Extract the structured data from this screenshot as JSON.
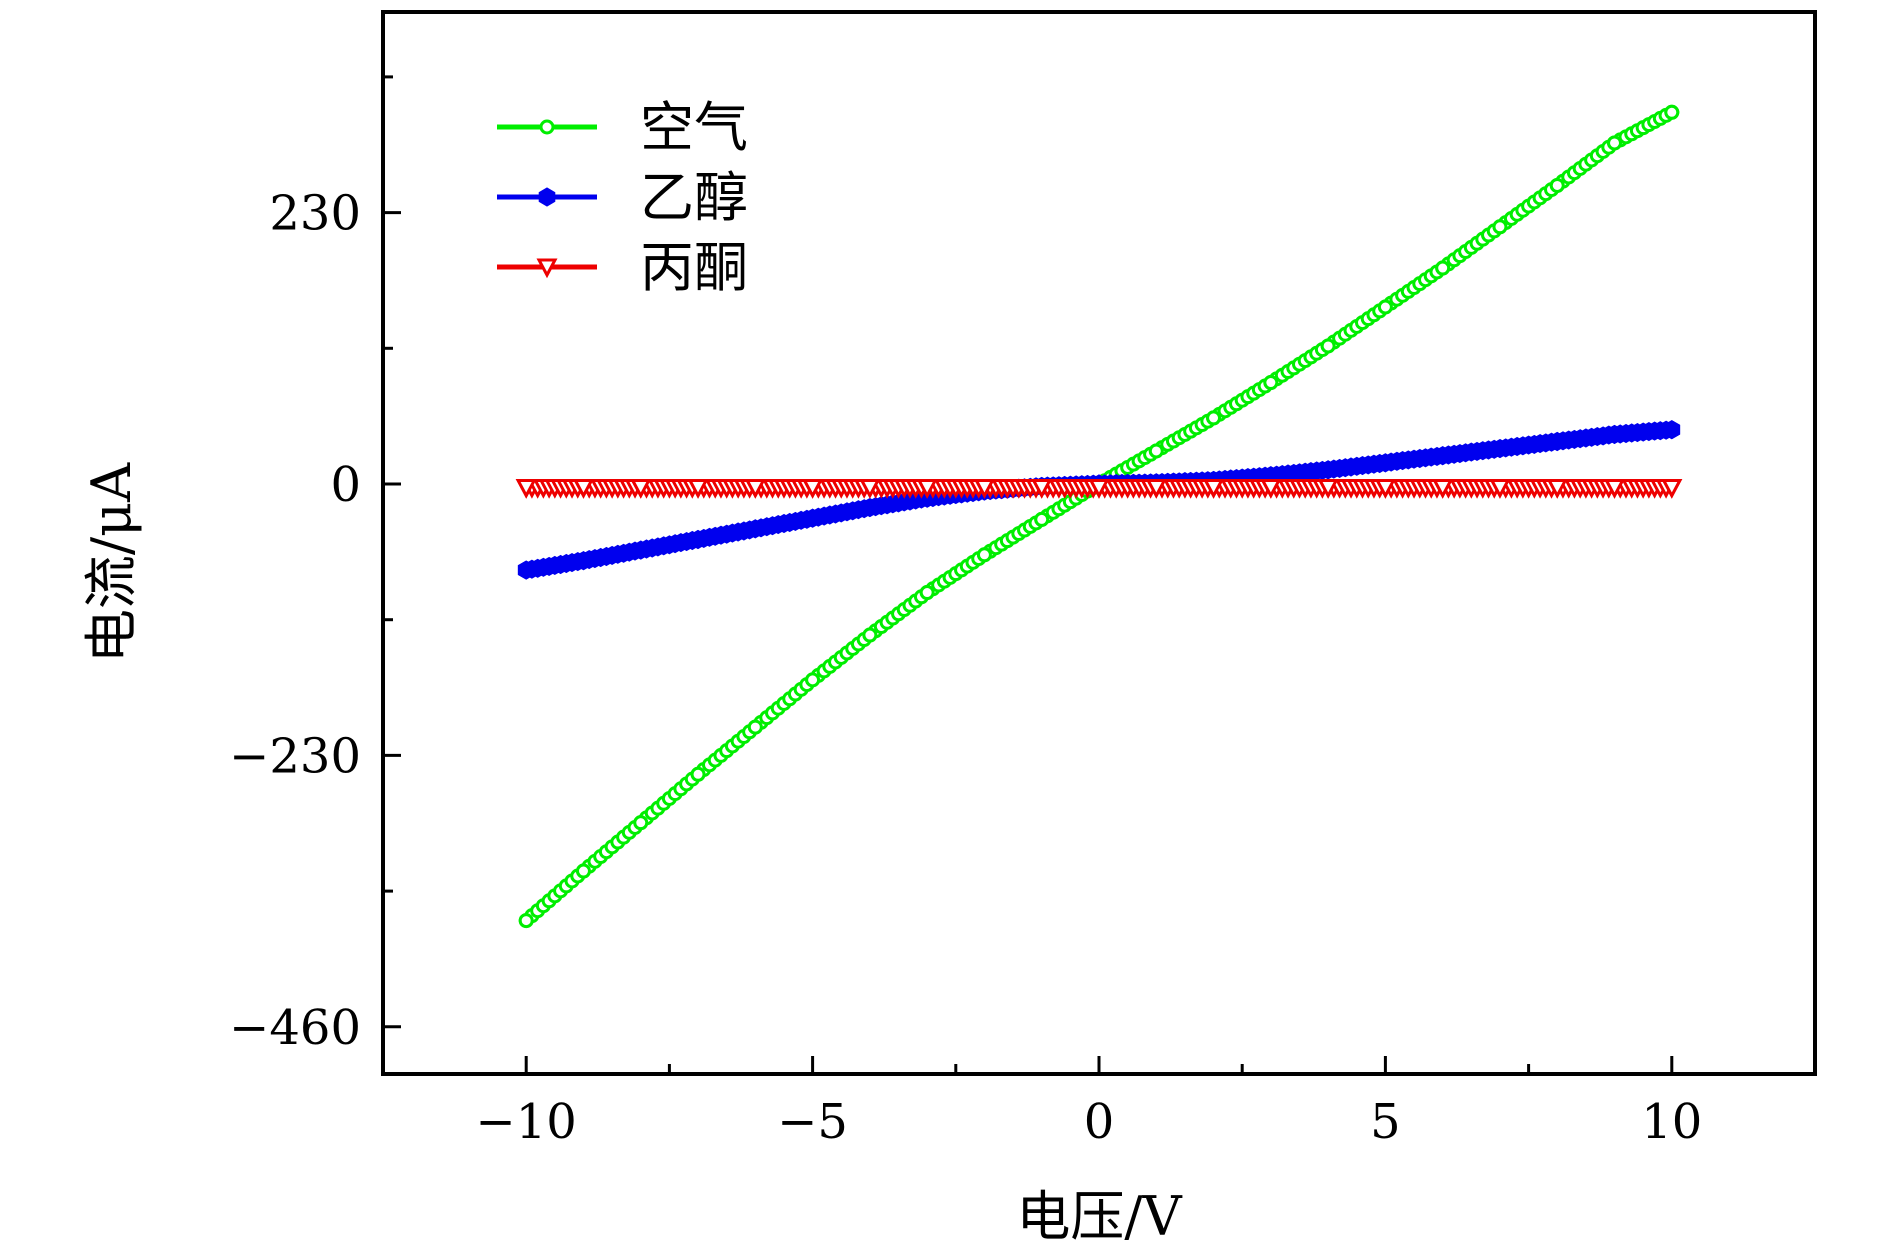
{
  "chart_data": {
    "type": "line",
    "xlabel": "电压/V",
    "ylabel": "电流/μA",
    "xlim": [
      -12.5,
      12.5
    ],
    "ylim": [
      -500,
      400
    ],
    "x_ticks": [
      -10,
      -5,
      0,
      5,
      10
    ],
    "x_tick_labels": [
      "−10",
      "−5",
      "0",
      "5",
      "10"
    ],
    "y_ticks": [
      -460,
      -230,
      0,
      230
    ],
    "y_tick_labels": [
      "−460",
      "−230",
      "0",
      "230"
    ],
    "x_minor_ticks": [
      -7.5,
      -2.5,
      2.5,
      7.5
    ],
    "y_minor_ticks": [
      -345,
      -115,
      115,
      345
    ],
    "grid": false,
    "legend_position": "top-left",
    "series": [
      {
        "name": "空气",
        "color": "#00ee00",
        "marker": "circle-open",
        "x": [
          -10,
          -9,
          -8,
          -7,
          -6,
          -5,
          -4,
          -3,
          -2,
          -1,
          0,
          1,
          2,
          3,
          4,
          5,
          6,
          7,
          8,
          9,
          10
        ],
        "y": [
          -370,
          -328,
          -287,
          -246,
          -206,
          -166,
          -128,
          -92,
          -60,
          -30,
          0,
          28,
          56,
          86,
          117,
          150,
          183,
          218,
          253,
          289,
          315
        ]
      },
      {
        "name": "乙醇",
        "color": "#0000ee",
        "marker": "hexagon-filled",
        "x": [
          -10,
          -9,
          -8,
          -7,
          -6,
          -5,
          -4,
          -3,
          -2,
          -1,
          0,
          1,
          2,
          3,
          4,
          5,
          6,
          7,
          8,
          9,
          10
        ],
        "y": [
          -73,
          -65,
          -56,
          -47,
          -38,
          -29,
          -20,
          -12,
          -6,
          -2,
          0,
          1,
          3,
          7,
          12,
          18,
          24,
          30,
          36,
          42,
          46
        ]
      },
      {
        "name": "丙酮",
        "color": "#ee0000",
        "marker": "triangle-down-open",
        "x": [
          -10,
          -9,
          -8,
          -7,
          -6,
          -5,
          -4,
          -3,
          -2,
          -1,
          0,
          1,
          2,
          3,
          4,
          5,
          6,
          7,
          8,
          9,
          10
        ],
        "y": [
          -3,
          -3,
          -3,
          -3,
          -3,
          -3,
          -3,
          -3,
          -3,
          -3,
          -3,
          -3,
          -3,
          -3,
          -3,
          -3,
          -3,
          -3,
          -3,
          -3,
          -3
        ]
      }
    ]
  }
}
